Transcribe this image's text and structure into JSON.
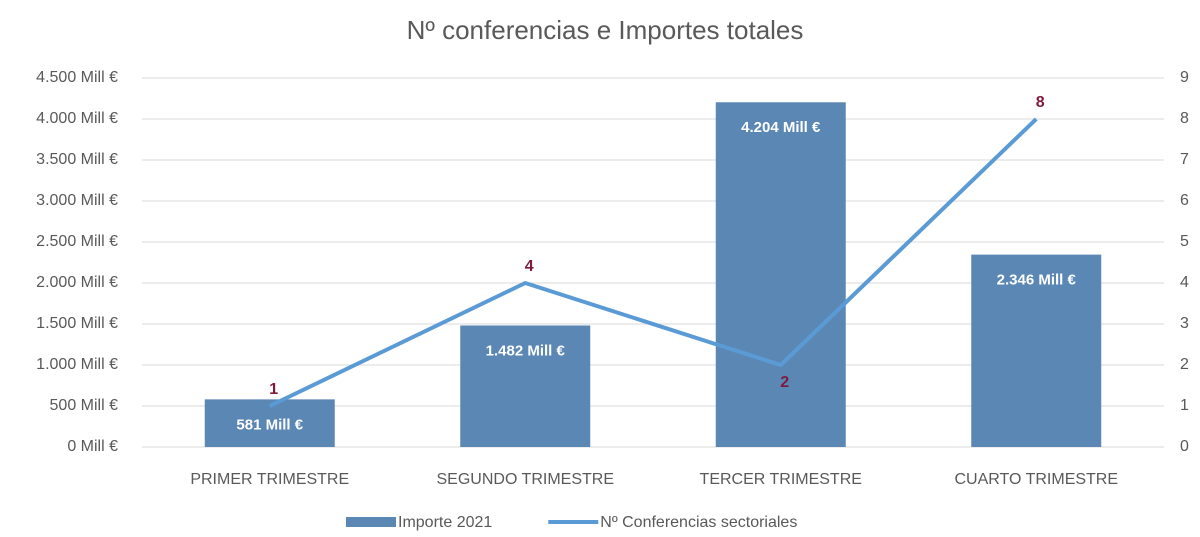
{
  "chart_data": {
    "type": "combo",
    "title": "Nº conferencias e Importes totales",
    "categories": [
      "PRIMER TRIMESTRE",
      "SEGUNDO TRIMESTRE",
      "TERCER TRIMESTRE",
      "CUARTO TRIMESTRE"
    ],
    "series": [
      {
        "name": "Importe 2021",
        "type": "bar",
        "color": "#5b87b5",
        "values": [
          581,
          1482,
          4204,
          2346
        ],
        "value_labels": [
          "581 Mill €",
          "1.482 Mill €",
          "4.204 Mill €",
          "2.346 Mill €"
        ]
      },
      {
        "name": "Nº Conferencias sectoriales",
        "type": "line",
        "axis": "y2",
        "color": "#5b9bd5",
        "label_color": "#7f1a3f",
        "values": [
          1,
          4,
          2,
          8
        ]
      }
    ],
    "ylim": [
      0,
      4500
    ],
    "yticks": [
      {
        "value": 0,
        "label": "0 Mill €"
      },
      {
        "value": 500,
        "label": "500 Mill €"
      },
      {
        "value": 1000,
        "label": "1.000 Mill €"
      },
      {
        "value": 1500,
        "label": "1.500 Mill €"
      },
      {
        "value": 2000,
        "label": "2.000 Mill €"
      },
      {
        "value": 2500,
        "label": "2.500 Mill €"
      },
      {
        "value": 3000,
        "label": "3.000 Mill €"
      },
      {
        "value": 3500,
        "label": "3.500 Mill €"
      },
      {
        "value": 4000,
        "label": "4.000 Mill €"
      },
      {
        "value": 4500,
        "label": "4.500 Mill €"
      }
    ],
    "y2lim": [
      0,
      9
    ],
    "y2ticks": [
      0,
      1,
      2,
      3,
      4,
      5,
      6,
      7,
      8,
      9
    ],
    "grid": true,
    "legend": "bottom"
  }
}
